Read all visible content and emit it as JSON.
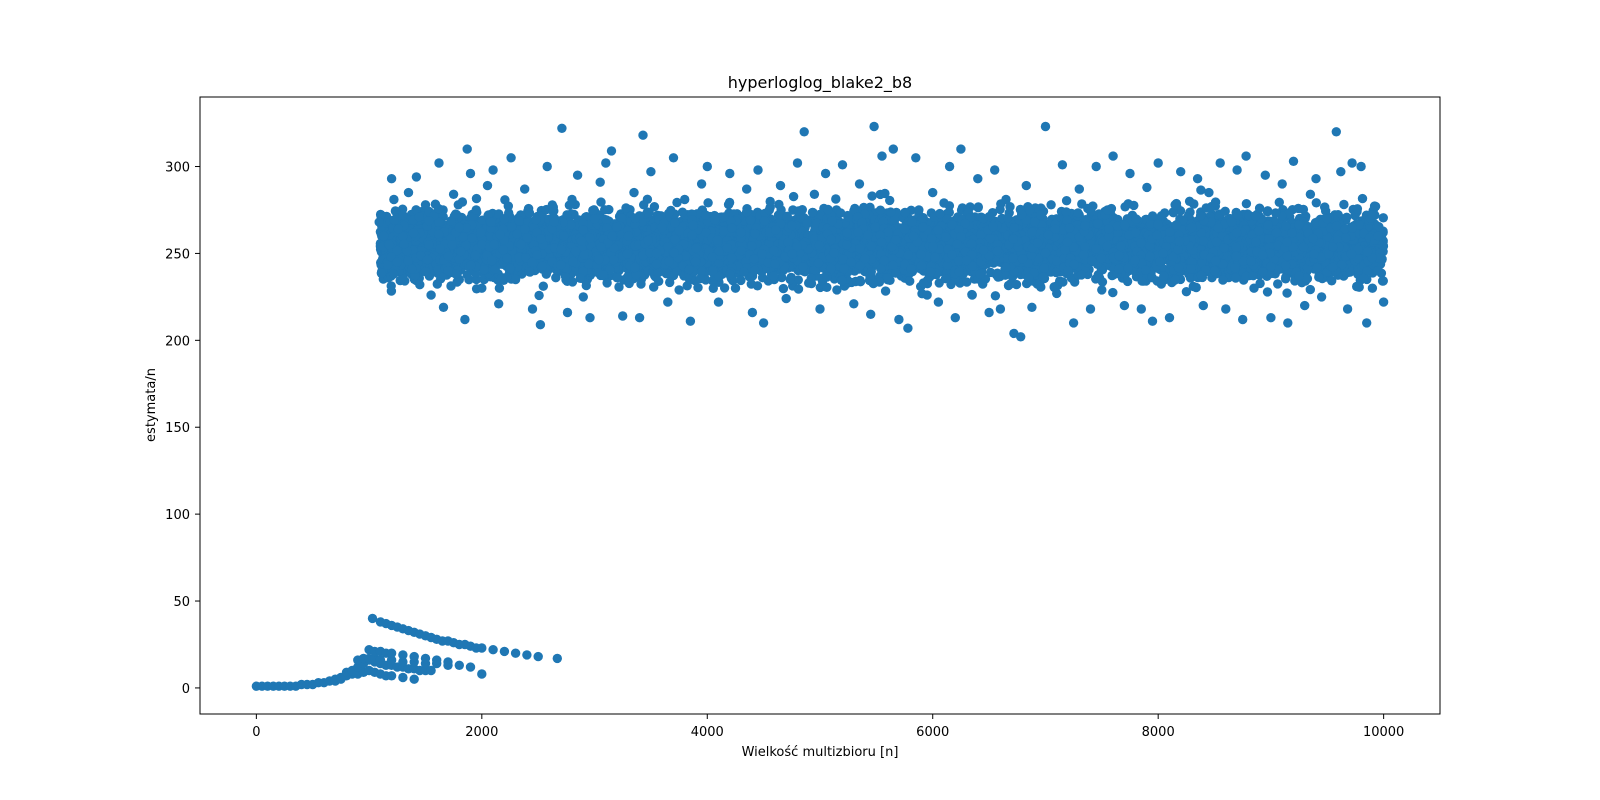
{
  "chart_data": {
    "type": "scatter",
    "title": "hyperloglog_blake2_b8",
    "xlabel": "Wielkość multizbioru [n]",
    "ylabel": "estymata/n",
    "xlim": [
      -500,
      10500
    ],
    "ylim": [
      -15,
      340
    ],
    "xticks": [
      0,
      2000,
      4000,
      6000,
      8000,
      10000
    ],
    "yticks": [
      0,
      50,
      100,
      150,
      200,
      250,
      300
    ],
    "grid": false,
    "marker_color": "#1f77b4",
    "series": [
      {
        "values": [
          [
            0,
            1
          ],
          [
            50,
            1
          ],
          [
            100,
            1
          ],
          [
            150,
            1
          ],
          [
            200,
            1
          ],
          [
            250,
            1
          ],
          [
            300,
            1
          ],
          [
            350,
            1
          ],
          [
            400,
            2
          ],
          [
            450,
            2
          ],
          [
            500,
            2
          ],
          [
            550,
            3
          ],
          [
            600,
            3
          ],
          [
            650,
            4
          ],
          [
            700,
            5
          ],
          [
            750,
            6
          ],
          [
            800,
            7
          ],
          [
            850,
            8
          ],
          [
            900,
            8
          ],
          [
            950,
            9
          ],
          [
            1000,
            10
          ],
          [
            1050,
            9
          ],
          [
            1100,
            8
          ],
          [
            1150,
            7
          ],
          [
            1200,
            7
          ],
          [
            1300,
            6
          ],
          [
            1400,
            5
          ],
          [
            700,
            4
          ],
          [
            750,
            5
          ],
          [
            800,
            9
          ],
          [
            850,
            10
          ],
          [
            900,
            12
          ],
          [
            950,
            14
          ],
          [
            1000,
            16
          ],
          [
            1050,
            15
          ],
          [
            1100,
            14
          ],
          [
            1150,
            13
          ],
          [
            1200,
            13
          ],
          [
            1250,
            12
          ],
          [
            1300,
            12
          ],
          [
            1350,
            11
          ],
          [
            1400,
            11
          ],
          [
            1450,
            10
          ],
          [
            1500,
            10
          ],
          [
            1550,
            10
          ],
          [
            900,
            16
          ],
          [
            950,
            17
          ],
          [
            1000,
            17
          ],
          [
            1050,
            17
          ],
          [
            1100,
            16
          ],
          [
            1200,
            16
          ],
          [
            1300,
            15
          ],
          [
            1400,
            15
          ],
          [
            1500,
            14
          ],
          [
            1600,
            14
          ],
          [
            1700,
            13
          ],
          [
            1000,
            22
          ],
          [
            1050,
            21
          ],
          [
            1100,
            21
          ],
          [
            1150,
            20
          ],
          [
            1200,
            20
          ],
          [
            1300,
            19
          ],
          [
            1400,
            18
          ],
          [
            1500,
            17
          ],
          [
            1600,
            16
          ],
          [
            1700,
            15
          ],
          [
            1800,
            13
          ],
          [
            1900,
            12
          ],
          [
            2000,
            8
          ],
          [
            1030,
            40
          ],
          [
            1100,
            38
          ],
          [
            1150,
            37
          ],
          [
            1200,
            36
          ],
          [
            1250,
            35
          ],
          [
            1300,
            34
          ],
          [
            1350,
            33
          ],
          [
            1400,
            32
          ],
          [
            1450,
            31
          ],
          [
            1500,
            30
          ],
          [
            1550,
            29
          ],
          [
            1600,
            28
          ],
          [
            1650,
            27
          ],
          [
            1700,
            27
          ],
          [
            1750,
            26
          ],
          [
            1800,
            25
          ],
          [
            1850,
            25
          ],
          [
            1900,
            24
          ],
          [
            1950,
            23
          ],
          [
            2000,
            23
          ],
          [
            2100,
            22
          ],
          [
            2200,
            21
          ],
          [
            2300,
            20
          ],
          [
            2400,
            19
          ],
          [
            2500,
            18
          ],
          [
            2670,
            17
          ],
          [
            1090,
            268
          ],
          [
            1130,
            260
          ],
          [
            1180,
            255
          ],
          [
            1200,
            293
          ],
          [
            1220,
            281
          ],
          [
            1250,
            245
          ],
          [
            1300,
            272
          ],
          [
            1350,
            285
          ],
          [
            1380,
            241
          ],
          [
            1420,
            294
          ],
          [
            1450,
            232
          ],
          [
            1500,
            278
          ],
          [
            1550,
            226
          ],
          [
            1620,
            302
          ],
          [
            1660,
            219
          ],
          [
            1700,
            240
          ],
          [
            1750,
            284
          ],
          [
            1800,
            265
          ],
          [
            1850,
            212
          ],
          [
            1870,
            310
          ],
          [
            1900,
            296
          ],
          [
            1950,
            275
          ],
          [
            2000,
            230
          ],
          [
            2050,
            289
          ],
          [
            2100,
            298
          ],
          [
            2150,
            221
          ],
          [
            2200,
            270
          ],
          [
            2260,
            305
          ],
          [
            2300,
            235
          ],
          [
            2380,
            287
          ],
          [
            2450,
            218
          ],
          [
            2520,
            209
          ],
          [
            2580,
            300
          ],
          [
            2640,
            268
          ],
          [
            2710,
            322
          ],
          [
            2760,
            216
          ],
          [
            2800,
            281
          ],
          [
            2850,
            295
          ],
          [
            2900,
            225
          ],
          [
            2960,
            213
          ],
          [
            3000,
            270
          ],
          [
            3050,
            291
          ],
          [
            3100,
            302
          ],
          [
            3150,
            309
          ],
          [
            3200,
            236
          ],
          [
            3250,
            214
          ],
          [
            3300,
            260
          ],
          [
            3350,
            285
          ],
          [
            3400,
            213
          ],
          [
            3430,
            318
          ],
          [
            3500,
            297
          ],
          [
            3550,
            250
          ],
          [
            3600,
            265
          ],
          [
            3650,
            222
          ],
          [
            3700,
            305
          ],
          [
            3750,
            229
          ],
          [
            3800,
            281
          ],
          [
            3850,
            211
          ],
          [
            3900,
            253
          ],
          [
            3950,
            290
          ],
          [
            4000,
            300
          ],
          [
            4050,
            240
          ],
          [
            4100,
            222
          ],
          [
            4150,
            271
          ],
          [
            4200,
            296
          ],
          [
            4250,
            230
          ],
          [
            4300,
            262
          ],
          [
            4350,
            287
          ],
          [
            4400,
            216
          ],
          [
            4450,
            298
          ],
          [
            4500,
            210
          ],
          [
            4550,
            275
          ],
          [
            4600,
            244
          ],
          [
            4650,
            289
          ],
          [
            4700,
            224
          ],
          [
            4750,
            266
          ],
          [
            4800,
            302
          ],
          [
            4860,
            320
          ],
          [
            4900,
            233
          ],
          [
            4950,
            284
          ],
          [
            5000,
            218
          ],
          [
            5050,
            296
          ],
          [
            5100,
            258
          ],
          [
            5150,
            229
          ],
          [
            5200,
            301
          ],
          [
            5250,
            271
          ],
          [
            5300,
            221
          ],
          [
            5350,
            290
          ],
          [
            5400,
            247
          ],
          [
            5450,
            215
          ],
          [
            5480,
            323
          ],
          [
            5550,
            306
          ],
          [
            5600,
            236
          ],
          [
            5650,
            310
          ],
          [
            5700,
            212
          ],
          [
            5750,
            264
          ],
          [
            5780,
            207
          ],
          [
            5850,
            305
          ],
          [
            5900,
            243
          ],
          [
            5950,
            226
          ],
          [
            6000,
            285
          ],
          [
            6050,
            222
          ],
          [
            6100,
            279
          ],
          [
            6150,
            300
          ],
          [
            6200,
            213
          ],
          [
            6250,
            310
          ],
          [
            6300,
            246
          ],
          [
            6350,
            226
          ],
          [
            6400,
            293
          ],
          [
            6450,
            252
          ],
          [
            6500,
            216
          ],
          [
            6550,
            298
          ],
          [
            6600,
            218
          ],
          [
            6650,
            281
          ],
          [
            6720,
            204
          ],
          [
            6780,
            202
          ],
          [
            6830,
            289
          ],
          [
            6880,
            219
          ],
          [
            6930,
            256
          ],
          [
            7000,
            323
          ],
          [
            7050,
            278
          ],
          [
            7100,
            227
          ],
          [
            7150,
            301
          ],
          [
            7200,
            240
          ],
          [
            7250,
            210
          ],
          [
            7300,
            287
          ],
          [
            7350,
            266
          ],
          [
            7400,
            218
          ],
          [
            7450,
            300
          ],
          [
            7500,
            229
          ],
          [
            7550,
            275
          ],
          [
            7600,
            306
          ],
          [
            7650,
            241
          ],
          [
            7700,
            220
          ],
          [
            7750,
            296
          ],
          [
            7800,
            262
          ],
          [
            7850,
            218
          ],
          [
            7900,
            288
          ],
          [
            7950,
            211
          ],
          [
            8000,
            302
          ],
          [
            8050,
            237
          ],
          [
            8100,
            213
          ],
          [
            8150,
            278
          ],
          [
            8200,
            297
          ],
          [
            8250,
            228
          ],
          [
            8300,
            265
          ],
          [
            8350,
            293
          ],
          [
            8400,
            220
          ],
          [
            8450,
            285
          ],
          [
            8500,
            240
          ],
          [
            8550,
            302
          ],
          [
            8600,
            218
          ],
          [
            8650,
            268
          ],
          [
            8700,
            298
          ],
          [
            8750,
            212
          ],
          [
            8780,
            306
          ],
          [
            8850,
            230
          ],
          [
            8900,
            276
          ],
          [
            8950,
            295
          ],
          [
            9000,
            213
          ],
          [
            9050,
            262
          ],
          [
            9100,
            290
          ],
          [
            9150,
            210
          ],
          [
            9200,
            303
          ],
          [
            9250,
            237
          ],
          [
            9300,
            220
          ],
          [
            9350,
            284
          ],
          [
            9400,
            293
          ],
          [
            9450,
            225
          ],
          [
            9500,
            270
          ],
          [
            9580,
            320
          ],
          [
            9620,
            297
          ],
          [
            9680,
            218
          ],
          [
            9720,
            302
          ],
          [
            9800,
            300
          ],
          [
            9850,
            210
          ],
          [
            9900,
            230
          ],
          [
            9950,
            260
          ],
          [
            10000,
            222
          ]
        ]
      }
    ],
    "dense_bands": [
      {
        "x_range": [
          1100,
          10000
        ],
        "y_center": 255,
        "y_spread": 13,
        "count": 8500
      }
    ]
  }
}
